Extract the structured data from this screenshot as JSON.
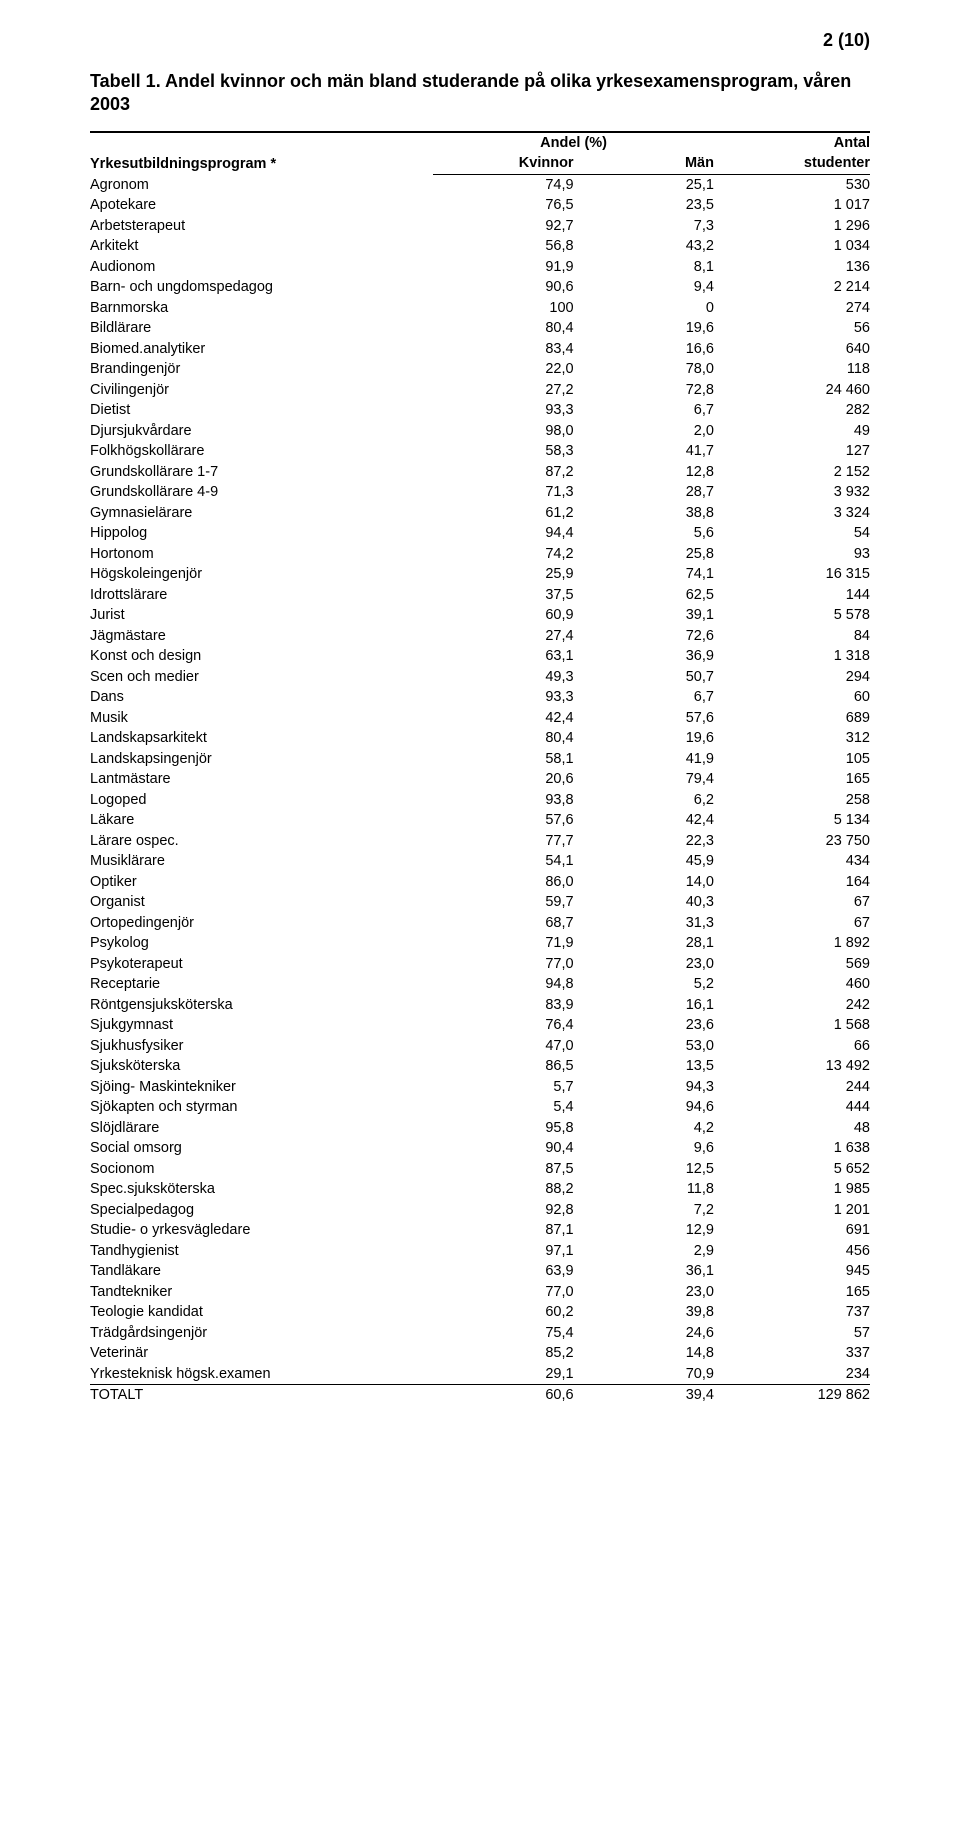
{
  "page_number": "2 (10)",
  "caption": "Tabell 1. Andel kvinnor och män bland studerande på olika yrkesexamensprogram, våren 2003",
  "header": {
    "col0": "Yrkesutbildningsprogram *",
    "andel": "Andel (%)",
    "antal": "Antal",
    "kvinnor": "Kvinnor",
    "man": "Män",
    "studenter": "studenter"
  },
  "rows": [
    {
      "label": "Agronom",
      "k": "74,9",
      "m": "25,1",
      "s": "530"
    },
    {
      "label": "Apotekare",
      "k": "76,5",
      "m": "23,5",
      "s": "1 017"
    },
    {
      "label": "Arbetsterapeut",
      "k": "92,7",
      "m": "7,3",
      "s": "1 296"
    },
    {
      "label": "Arkitekt",
      "k": "56,8",
      "m": "43,2",
      "s": "1 034"
    },
    {
      "label": "Audionom",
      "k": "91,9",
      "m": "8,1",
      "s": "136"
    },
    {
      "label": "Barn- och ungdomspedagog",
      "k": "90,6",
      "m": "9,4",
      "s": "2 214"
    },
    {
      "label": "Barnmorska",
      "k": "100",
      "m": "0",
      "s": "274"
    },
    {
      "label": "Bildlärare",
      "k": "80,4",
      "m": "19,6",
      "s": "56"
    },
    {
      "label": "Biomed.analytiker",
      "k": "83,4",
      "m": "16,6",
      "s": "640"
    },
    {
      "label": "Brandingenjör",
      "k": "22,0",
      "m": "78,0",
      "s": "118"
    },
    {
      "label": "Civilingenjör",
      "k": "27,2",
      "m": "72,8",
      "s": "24 460"
    },
    {
      "label": "Dietist",
      "k": "93,3",
      "m": "6,7",
      "s": "282"
    },
    {
      "label": "Djursjukvårdare",
      "k": "98,0",
      "m": "2,0",
      "s": "49"
    },
    {
      "label": "Folkhögskollärare",
      "k": "58,3",
      "m": "41,7",
      "s": "127"
    },
    {
      "label": "Grundskollärare 1-7",
      "k": "87,2",
      "m": "12,8",
      "s": "2 152"
    },
    {
      "label": "Grundskollärare 4-9",
      "k": "71,3",
      "m": "28,7",
      "s": "3 932"
    },
    {
      "label": "Gymnasielärare",
      "k": "61,2",
      "m": "38,8",
      "s": "3 324"
    },
    {
      "label": "Hippolog",
      "k": "94,4",
      "m": "5,6",
      "s": "54"
    },
    {
      "label": "Hortonom",
      "k": "74,2",
      "m": "25,8",
      "s": "93"
    },
    {
      "label": "Högskoleingenjör",
      "k": "25,9",
      "m": "74,1",
      "s": "16 315"
    },
    {
      "label": "Idrottslärare",
      "k": "37,5",
      "m": "62,5",
      "s": "144"
    },
    {
      "label": "Jurist",
      "k": "60,9",
      "m": "39,1",
      "s": "5 578"
    },
    {
      "label": "Jägmästare",
      "k": "27,4",
      "m": "72,6",
      "s": "84"
    },
    {
      "label": "Konst och design",
      "k": "63,1",
      "m": "36,9",
      "s": "1 318"
    },
    {
      "label": "Scen och medier",
      "k": "49,3",
      "m": "50,7",
      "s": "294"
    },
    {
      "label": "Dans",
      "k": "93,3",
      "m": "6,7",
      "s": "60"
    },
    {
      "label": "Musik",
      "k": "42,4",
      "m": "57,6",
      "s": "689"
    },
    {
      "label": "Landskapsarkitekt",
      "k": "80,4",
      "m": "19,6",
      "s": "312"
    },
    {
      "label": "Landskapsingenjör",
      "k": "58,1",
      "m": "41,9",
      "s": "105"
    },
    {
      "label": "Lantmästare",
      "k": "20,6",
      "m": "79,4",
      "s": "165"
    },
    {
      "label": "Logoped",
      "k": "93,8",
      "m": "6,2",
      "s": "258"
    },
    {
      "label": "Läkare",
      "k": "57,6",
      "m": "42,4",
      "s": "5 134"
    },
    {
      "label": "Lärare ospec.",
      "k": "77,7",
      "m": "22,3",
      "s": "23 750"
    },
    {
      "label": "Musiklärare",
      "k": "54,1",
      "m": "45,9",
      "s": "434"
    },
    {
      "label": "Optiker",
      "k": "86,0",
      "m": "14,0",
      "s": "164"
    },
    {
      "label": "Organist",
      "k": "59,7",
      "m": "40,3",
      "s": "67"
    },
    {
      "label": "Ortopedingenjör",
      "k": "68,7",
      "m": "31,3",
      "s": "67"
    },
    {
      "label": "Psykolog",
      "k": "71,9",
      "m": "28,1",
      "s": "1 892"
    },
    {
      "label": "Psykoterapeut",
      "k": "77,0",
      "m": "23,0",
      "s": "569"
    },
    {
      "label": "Receptarie",
      "k": "94,8",
      "m": "5,2",
      "s": "460"
    },
    {
      "label": "Röntgensjuksköterska",
      "k": "83,9",
      "m": "16,1",
      "s": "242"
    },
    {
      "label": "Sjukgymnast",
      "k": "76,4",
      "m": "23,6",
      "s": "1 568"
    },
    {
      "label": "Sjukhusfysiker",
      "k": "47,0",
      "m": "53,0",
      "s": "66"
    },
    {
      "label": "Sjuksköterska",
      "k": "86,5",
      "m": "13,5",
      "s": "13 492"
    },
    {
      "label": "Sjöing- Maskintekniker",
      "k": "5,7",
      "m": "94,3",
      "s": "244"
    },
    {
      "label": "Sjökapten och  styrman",
      "k": "5,4",
      "m": "94,6",
      "s": "444"
    },
    {
      "label": "Slöjdlärare",
      "k": "95,8",
      "m": "4,2",
      "s": "48"
    },
    {
      "label": "Social omsorg",
      "k": "90,4",
      "m": "9,6",
      "s": "1 638"
    },
    {
      "label": "Socionom",
      "k": "87,5",
      "m": "12,5",
      "s": "5 652"
    },
    {
      "label": "Spec.sjuksköterska",
      "k": "88,2",
      "m": "11,8",
      "s": "1 985"
    },
    {
      "label": "Specialpedagog",
      "k": "92,8",
      "m": "7,2",
      "s": "1 201"
    },
    {
      "label": "Studie- o yrkesvägledare",
      "k": "87,1",
      "m": "12,9",
      "s": "691"
    },
    {
      "label": "Tandhygienist",
      "k": "97,1",
      "m": "2,9",
      "s": "456"
    },
    {
      "label": "Tandläkare",
      "k": "63,9",
      "m": "36,1",
      "s": "945"
    },
    {
      "label": "Tandtekniker",
      "k": "77,0",
      "m": "23,0",
      "s": "165"
    },
    {
      "label": "Teologie kandidat",
      "k": "60,2",
      "m": "39,8",
      "s": "737"
    },
    {
      "label": "Trädgårdsingenjör",
      "k": "75,4",
      "m": "24,6",
      "s": "57"
    },
    {
      "label": "Veterinär",
      "k": "85,2",
      "m": "14,8",
      "s": "337"
    },
    {
      "label": "Yrkesteknisk högsk.examen",
      "k": "29,1",
      "m": "70,9",
      "s": "234"
    }
  ],
  "total": {
    "label": "TOTALT",
    "k": "60,6",
    "m": "39,4",
    "s": "129 862"
  }
}
